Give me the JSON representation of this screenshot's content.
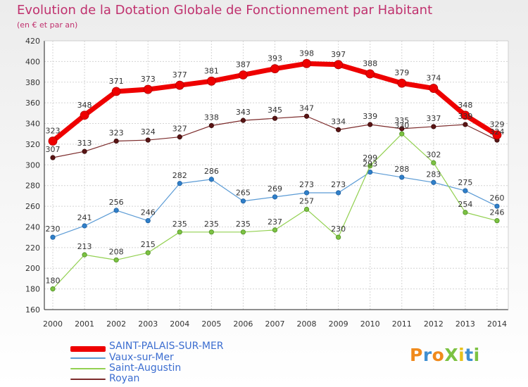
{
  "title": "Evolution de la Dotation Globale de Fonctionnement par Habitant",
  "subtitle": "(en € et par an)",
  "logo": {
    "text": "ProXiti",
    "colors": [
      "#f08a1c",
      "#3f8fd1",
      "#f08a1c",
      "#7cc242",
      "#e8c21c",
      "#3f8fd1",
      "#7cc242"
    ]
  },
  "chart_data": {
    "type": "line",
    "x": [
      "2000",
      "2001",
      "2002",
      "2003",
      "2004",
      "2005",
      "2006",
      "2007",
      "2008",
      "2009",
      "2010",
      "2011",
      "2012",
      "2013",
      "2014"
    ],
    "ylim": [
      160,
      420
    ],
    "yticks": [
      160,
      180,
      200,
      220,
      240,
      260,
      280,
      300,
      320,
      340,
      360,
      380,
      400,
      420
    ],
    "grid": true,
    "legend": "bottom-left",
    "series": [
      {
        "name": "SAINT-PALAIS-SUR-MER",
        "color": "#ee0000",
        "values": [
          323,
          348,
          371,
          373,
          377,
          381,
          387,
          393,
          398,
          397,
          388,
          379,
          374,
          348,
          329
        ],
        "labels": [
          "323",
          "348",
          "371",
          "373",
          "377",
          "381",
          "387",
          "393",
          "398",
          "397",
          "388",
          "379",
          "374",
          "348",
          "329"
        ]
      },
      {
        "name": "Vaux-sur-Mer",
        "color": "#5b9bd5",
        "values": [
          230,
          241,
          256,
          246,
          282,
          286,
          265,
          269,
          273,
          273,
          293,
          288,
          283,
          275,
          260
        ],
        "labels": [
          "230",
          "241",
          "256",
          "246",
          "282",
          "286",
          "265",
          "269",
          "273",
          "273",
          "293",
          "288",
          "283",
          "275",
          "260"
        ]
      },
      {
        "name": "Saint-Augustin",
        "color": "#92d050",
        "values": [
          180,
          213,
          208,
          215,
          235,
          235,
          235,
          237,
          257,
          230,
          299,
          330,
          302,
          254,
          246
        ],
        "labels": [
          "180",
          "213",
          "208",
          "215",
          "235",
          "235",
          "235",
          "237",
          "257",
          "230",
          "299",
          "330",
          "302",
          "254",
          "246"
        ]
      },
      {
        "name": "Royan",
        "color": "#7b2a2a",
        "values": [
          307,
          313,
          323,
          324,
          327,
          338,
          343,
          345,
          347,
          334,
          339,
          335,
          337,
          339,
          324
        ],
        "labels": [
          "307",
          "313",
          "323",
          "324",
          "327",
          "338",
          "343",
          "345",
          "347",
          "334",
          "339",
          "335",
          "337",
          "339",
          "324"
        ]
      }
    ]
  }
}
